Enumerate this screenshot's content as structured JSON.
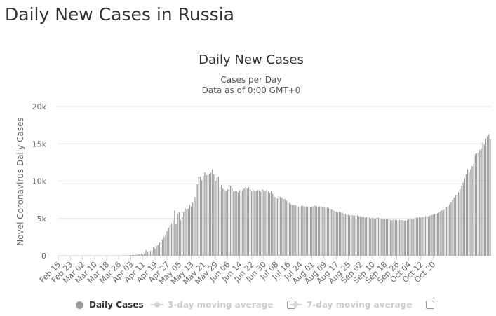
{
  "page": {
    "title": "Daily New Cases in Russia"
  },
  "chart_data": {
    "type": "bar",
    "title": "Daily New Cases",
    "subtitle_lines": [
      "Cases per Day",
      "Data as of 0:00 GMT+0"
    ],
    "xlabel": "",
    "ylabel": "Novel Coronavirus Daily Cases",
    "ylim": [
      0,
      20000
    ],
    "yticks": [
      0,
      5000,
      10000,
      15000,
      20000
    ],
    "ytick_labels": [
      "0",
      "5k",
      "10k",
      "15k",
      "20k"
    ],
    "xtick_labels": [
      "Feb 15",
      "Feb 23",
      "Mar 02",
      "Mar 10",
      "Mar 18",
      "Mar 26",
      "Apr 03",
      "Apr 11",
      "Apr 19",
      "Apr 27",
      "May 05",
      "May 13",
      "May 21",
      "May 29",
      "Jun 06",
      "Jun 14",
      "Jun 22",
      "Jun 30",
      "Jul 08",
      "Jul 16",
      "Jul 24",
      "Aug 01",
      "Aug 09",
      "Aug 17",
      "Aug 25",
      "Sep 02",
      "Sep 10",
      "Sep 18",
      "Sep 26",
      "Oct 04",
      "Oct 12",
      "Oct 20"
    ],
    "grid": true,
    "bar_color": "#9e9e9e",
    "series": [
      {
        "name": "Daily Cases",
        "values": [
          0,
          0,
          0,
          0,
          0,
          0,
          0,
          0,
          0,
          0,
          0,
          0,
          0,
          0,
          0,
          0,
          0,
          0,
          0,
          0,
          0,
          0,
          0,
          0,
          0,
          0,
          0,
          0,
          0,
          0,
          0,
          0,
          0,
          0,
          0,
          2,
          2,
          5,
          9,
          11,
          14,
          20,
          19,
          25,
          30,
          40,
          57,
          58,
          72,
          90,
          112,
          130,
          100,
          180,
          195,
          270,
          160,
          330,
          770,
          500,
          590,
          650,
          770,
          1150,
          950,
          1300,
          1450,
          1750,
          1780,
          2180,
          2550,
          2800,
          3300,
          3750,
          4070,
          4300,
          4770,
          6060,
          4270,
          5640,
          5840,
          4780,
          5200,
          5900,
          6400,
          6200,
          6300,
          6800,
          6600,
          7100,
          7900,
          7900,
          9600,
          10600,
          10600,
          10100,
          10700,
          11200,
          10800,
          10800,
          11000,
          11100,
          11600,
          10900,
          10000,
          10400,
          10600,
          9200,
          9500,
          9000,
          8800,
          8700,
          8900,
          8900,
          9400,
          9000,
          8600,
          8700,
          8700,
          8500,
          8800,
          8600,
          8800,
          9000,
          9200,
          9000,
          9200,
          8900,
          8700,
          8800,
          8700,
          8700,
          8800,
          8800,
          8600,
          8900,
          8800,
          8700,
          8800,
          8600,
          8400,
          8700,
          8300,
          7900,
          7900,
          7700,
          8000,
          7900,
          7800,
          7600,
          7600,
          7400,
          7200,
          7100,
          6900,
          6800,
          6800,
          6800,
          6700,
          6600,
          6600,
          6700,
          6700,
          6600,
          6600,
          6600,
          6600,
          6500,
          6600,
          6600,
          6700,
          6600,
          6500,
          6600,
          6600,
          6500,
          6500,
          6400,
          6500,
          6400,
          6300,
          6200,
          6100,
          6000,
          5900,
          5800,
          5900,
          5800,
          5800,
          5700,
          5600,
          5500,
          5500,
          5400,
          5500,
          5400,
          5400,
          5400,
          5400,
          5300,
          5300,
          5200,
          5200,
          5100,
          5200,
          5200,
          5100,
          5000,
          5100,
          5000,
          5000,
          5100,
          5100,
          5000,
          5000,
          4900,
          4900,
          4900,
          4900,
          4900,
          4800,
          4800,
          4900,
          4800,
          4800,
          4700,
          4800,
          4800,
          4800,
          4700,
          4700,
          4800,
          4900,
          5000,
          4900,
          4900,
          5000,
          5100,
          5100,
          5200,
          5100,
          5200,
          5200,
          5300,
          5300,
          5300,
          5400,
          5500,
          5500,
          5600,
          5600,
          5700,
          5800,
          6000,
          6100,
          6100,
          6200,
          6500,
          6600,
          6900,
          7200,
          7500,
          7800,
          8100,
          8200,
          8500,
          8900,
          9400,
          9800,
          10400,
          10900,
          11600,
          11200,
          11600,
          12000,
          12300,
          13600,
          13700,
          13800,
          14200,
          14400,
          15200,
          14900,
          15700,
          16000,
          16300,
          15600
        ]
      }
    ]
  },
  "legend": {
    "items": [
      {
        "label": "Daily Cases",
        "enabled": true
      },
      {
        "label": "3-day moving average",
        "enabled": false
      },
      {
        "label": "7-day moving average",
        "enabled": false
      }
    ]
  },
  "colors": {
    "bars": "#9e9e9e",
    "grid": "#e6e6e6",
    "legend_disabled": "#cccccc",
    "text": "#333333"
  }
}
